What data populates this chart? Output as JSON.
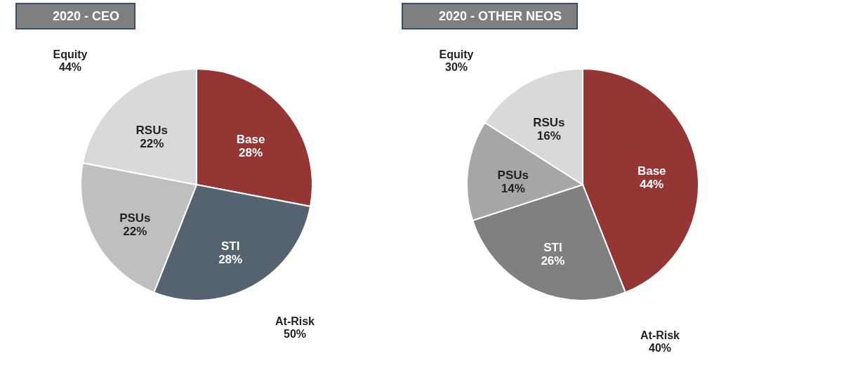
{
  "chart_data": [
    {
      "type": "pie",
      "title": "2020 - CEO",
      "categories": [
        "Base",
        "STI",
        "PSUs",
        "RSUs"
      ],
      "values": [
        28,
        28,
        22,
        22
      ],
      "value_labels": [
        "28%",
        "28%",
        "22%",
        "22%"
      ],
      "colors": [
        "#943634",
        "#556270",
        "#bfbfbf",
        "#d9d9d9"
      ],
      "annotations": [
        "Equity\n44%",
        "At-Risk\n50%"
      ]
    },
    {
      "type": "pie",
      "title": "2020 - OTHER NEOS",
      "categories": [
        "Base",
        "STI",
        "PSUs",
        "RSUs"
      ],
      "values": [
        44,
        26,
        14,
        16
      ],
      "value_labels": [
        "44%",
        "26%",
        "14%",
        "16%"
      ],
      "colors": [
        "#943634",
        "#808080",
        "#a6a6a6",
        "#d9d9d9"
      ],
      "annotations": [
        "Equity\n30%",
        "At-Risk\n40%"
      ]
    }
  ]
}
